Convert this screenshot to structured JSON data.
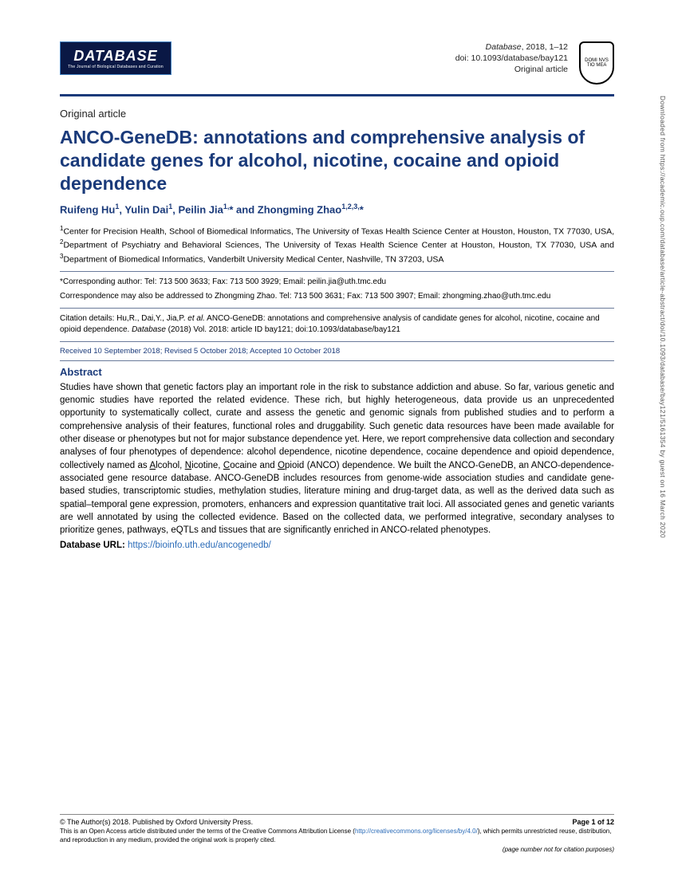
{
  "logo": {
    "text": "DATABASE",
    "subtitle": "The Journal of Biological Databases and Curation"
  },
  "header_meta": {
    "journal": "Database",
    "year": "2018",
    "pages": "1–12",
    "doi": "doi: 10.1093/database/bay121",
    "type": "Original article"
  },
  "seal": "DOMI NVS TIO MEA",
  "article_type": "Original article",
  "title": "ANCO-GeneDB: annotations and comprehensive analysis of candidate genes for alcohol, nicotine, cocaine and opioid dependence",
  "authors_html": "Ruifeng Hu<sup>1</sup>, Yulin Dai<sup>1</sup>, Peilin Jia<sup>1,</sup>* and Zhongming Zhao<sup>1,2,3,</sup>*",
  "affiliations_html": "<sup>1</sup>Center for Precision Health, School of Biomedical Informatics, The University of Texas Health Science Center at Houston, Houston, TX 77030, USA, <sup>2</sup>Department of Psychiatry and Behavioral Sciences, The University of Texas Health Science Center at Houston, Houston, TX 77030, USA and <sup>3</sup>Department of Biomedical Informatics, Vanderbilt University Medical Center, Nashville, TN 37203, USA",
  "corresponding1": "*Corresponding author: Tel: 713 500 3633; Fax: 713 500 3929; Email: peilin.jia@uth.tmc.edu",
  "corresponding2": "Correspondence may also be addressed to Zhongming Zhao. Tel: 713 500 3631; Fax: 713 500 3907; Email: zhongming.zhao@uth.tmc.edu",
  "citation_html": "Citation details: Hu,R., Dai,Y., Jia,P. <em>et al.</em> ANCO-GeneDB: annotations and comprehensive analysis of candidate genes for alcohol, nicotine, cocaine and opioid dependence. <em>Database</em> (2018) Vol. 2018: article ID bay121; doi:10.1093/database/bay121",
  "dates": "Received 10 September 2018; Revised 5 October 2018; Accepted 10 October 2018",
  "abstract_heading": "Abstract",
  "abstract_html": "Studies have shown that genetic factors play an important role in the risk to substance addiction and abuse. So far, various genetic and genomic studies have reported the related evidence. These rich, but highly heterogeneous, data provide us an unprecedented opportunity to systematically collect, curate and assess the genetic and genomic signals from published studies and to perform a comprehensive analysis of their features, functional roles and druggability. Such genetic data resources have been made available for other disease or phenotypes but not for major substance dependence yet. Here, we report comprehensive data collection and secondary analyses of four phenotypes of dependence: alcohol dependence, nicotine dependence, cocaine dependence and opioid dependence, collectively named as <u>A</u>lcohol, <u>N</u>icotine, <u>C</u>ocaine and <u>O</u>pioid (ANCO) dependence. We built the ANCO-GeneDB, an ANCO-dependence-associated gene resource database. ANCO-GeneDB includes resources from genome-wide association studies and candidate gene-based studies, transcriptomic studies, methylation studies, literature mining and drug-target data, as well as the derived data such as spatial–temporal gene expression, promoters, enhancers and expression quantitative trait loci. All associated genes and genetic variants are well annotated by using the collected evidence. Based on the collected data, we performed integrative, secondary analyses to prioritize genes, pathways, eQTLs and tissues that are significantly enriched in ANCO-related phenotypes.",
  "db_url_label": "Database URL:",
  "db_url": "https://bioinfo.uth.edu/ancogenedb/",
  "footer": {
    "copyright": "© The Author(s) 2018. Published by Oxford University Press.",
    "page": "Page 1 of 12",
    "license_html": "This is an Open Access article distributed under the terms of the Creative Commons Attribution License (<a href='#'>http://creativecommons.org/licenses/by/4.0/</a>), which permits unrestricted reuse, distribution, and reproduction in any medium, provided the original work is properly cited.",
    "note": "(page number not for citation purposes)"
  },
  "side_text": "Downloaded from https://academic.oup.com/database/article-abstract/doi/10.1093/database/bay121/5161354 by guest on 16 March 2020"
}
